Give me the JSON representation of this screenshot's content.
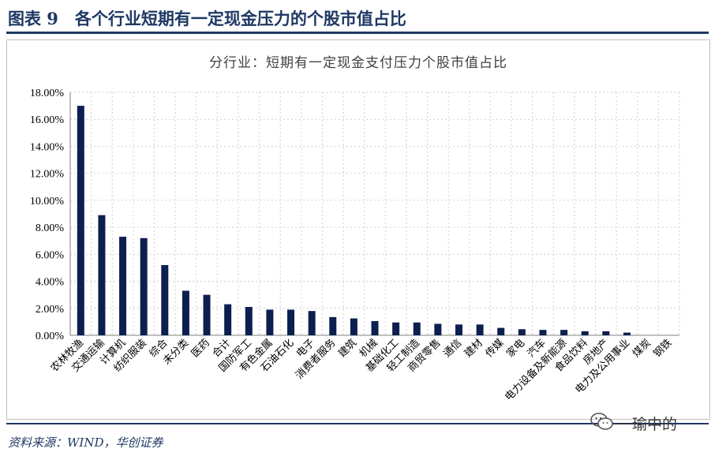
{
  "header": {
    "title": "图表 9　各个行业短期有一定现金压力的个股市值占比"
  },
  "footer": {
    "source": "资料来源：WIND，华创证券"
  },
  "watermark": {
    "text": "一瑜中的",
    "icon": "wechat-icon"
  },
  "colors": {
    "bar": "#0c1f4f",
    "grid": "#d0d0d0",
    "brand": "#1f3864"
  },
  "chart_data": {
    "type": "bar",
    "title": "分行业：短期有一定现金支付压力个股市值占比",
    "xlabel": "",
    "ylabel": "",
    "ylim": [
      0,
      18
    ],
    "yticks": [
      "0.00%",
      "2.00%",
      "4.00%",
      "6.00%",
      "8.00%",
      "10.00%",
      "12.00%",
      "14.00%",
      "16.00%",
      "18.00%"
    ],
    "grid": true,
    "categories": [
      "农林牧渔",
      "交通运输",
      "计算机",
      "纺织服装",
      "综合",
      "未分类",
      "医药",
      "合计",
      "国防军工",
      "有色金属",
      "石油石化",
      "电子",
      "消费者服务",
      "建筑",
      "机械",
      "基础化工",
      "轻工制造",
      "商贸零售",
      "通信",
      "建材",
      "传媒",
      "家电",
      "汽车",
      "电力设备及新能源",
      "食品饮料",
      "房地产",
      "电力及公用事业",
      "煤炭",
      "钢铁"
    ],
    "values": [
      17.0,
      8.9,
      7.3,
      7.2,
      5.2,
      3.3,
      3.0,
      2.3,
      2.1,
      1.9,
      1.9,
      1.8,
      1.35,
      1.25,
      1.05,
      0.95,
      0.95,
      0.85,
      0.8,
      0.8,
      0.55,
      0.45,
      0.4,
      0.4,
      0.3,
      0.3,
      0.2,
      0.0,
      0.0
    ]
  }
}
